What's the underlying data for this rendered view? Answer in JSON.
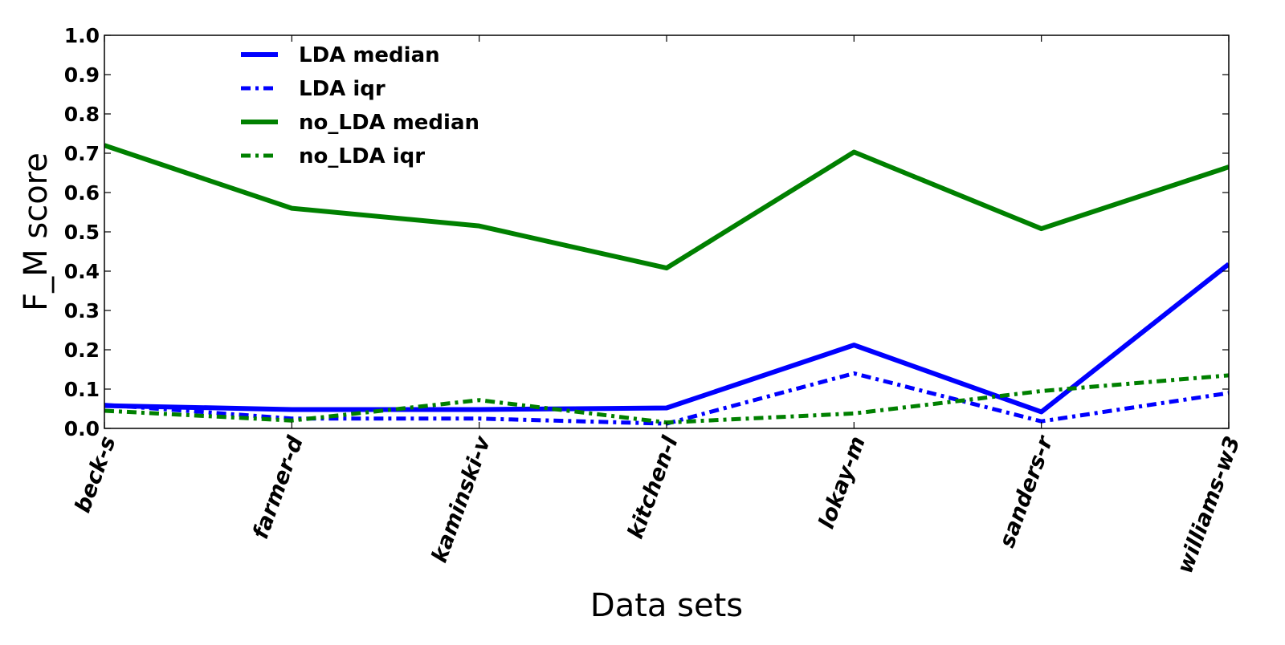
{
  "chart_data": {
    "type": "line",
    "title": "",
    "xlabel": "Data sets",
    "ylabel": "F_M score",
    "categories": [
      "beck-s",
      "farmer-d",
      "kaminski-v",
      "kitchen-l",
      "lokay-m",
      "sanders-r",
      "williams-w3"
    ],
    "ylim": [
      0,
      1.0
    ],
    "yticks": [
      0.0,
      0.1,
      0.2,
      0.3,
      0.4,
      0.5,
      0.6,
      0.7,
      0.8,
      0.9,
      1.0
    ],
    "ytick_labels": [
      "0.0",
      "0.1",
      "0.2",
      "0.3",
      "0.4",
      "0.5",
      "0.6",
      "0.7",
      "0.8",
      "0.9",
      "1.0"
    ],
    "grid": false,
    "legend_position": "top-left",
    "series": [
      {
        "name": "LDA median",
        "color": "#0000ff",
        "style": "solid",
        "values": [
          0.058,
          0.048,
          0.048,
          0.052,
          0.212,
          0.042,
          0.418
        ]
      },
      {
        "name": "LDA iqr",
        "color": "#0000ff",
        "style": "dashdot",
        "values": [
          0.06,
          0.025,
          0.025,
          0.012,
          0.14,
          0.018,
          0.09
        ]
      },
      {
        "name": "no_LDA median",
        "color": "#008000",
        "style": "solid",
        "values": [
          0.72,
          0.56,
          0.515,
          0.408,
          0.703,
          0.508,
          0.665
        ]
      },
      {
        "name": "no_LDA iqr",
        "color": "#008000",
        "style": "dashdot",
        "values": [
          0.045,
          0.02,
          0.072,
          0.015,
          0.038,
          0.095,
          0.135
        ]
      }
    ]
  }
}
